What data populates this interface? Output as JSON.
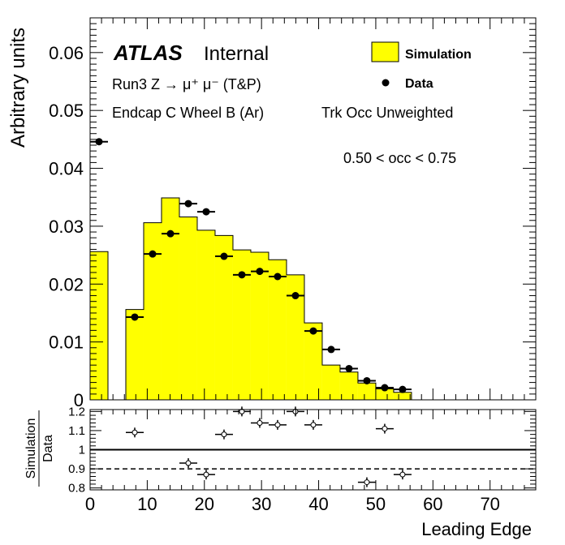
{
  "chart_data": [
    {
      "type": "bar",
      "panel": "main",
      "ylabel": "Arbitrary units",
      "xlim": [
        0,
        78
      ],
      "ylim": [
        0,
        0.066
      ],
      "y_ticks": [
        0,
        0.01,
        0.02,
        0.03,
        0.04,
        0.05,
        0.06
      ],
      "y_tick_labels": [
        "0",
        "0.01",
        "0.02",
        "0.03",
        "0.04",
        "0.05",
        "0.06"
      ],
      "annotations": {
        "atlas": "ATLAS",
        "internal": "Internal",
        "process": "Run3 Z → μ⁺ μ⁻ (T&P)",
        "region": "Endcap C Wheel B (Ar)",
        "weighting": "Trk Occ Unweighted",
        "occ_cut": "0.50 < occ < 0.75"
      },
      "legend": {
        "placement": "top-right",
        "entries": [
          {
            "label": "Simulation",
            "style": "fill",
            "color": "#ffff00"
          },
          {
            "label": "Data",
            "style": "marker",
            "color": "#000000"
          }
        ]
      },
      "series": [
        {
          "name": "Simulation",
          "style": "filled-histogram",
          "color": "#ffff00",
          "bins": [
            {
              "lo": 0.0,
              "hi": 3.125,
              "value": 0.0256
            },
            {
              "lo": 3.125,
              "hi": 6.25,
              "value": 0.0
            },
            {
              "lo": 6.25,
              "hi": 9.375,
              "value": 0.0156
            },
            {
              "lo": 9.375,
              "hi": 12.5,
              "value": 0.0306
            },
            {
              "lo": 12.5,
              "hi": 15.625,
              "value": 0.0349
            },
            {
              "lo": 15.625,
              "hi": 18.75,
              "value": 0.0316
            },
            {
              "lo": 18.75,
              "hi": 21.875,
              "value": 0.0293
            },
            {
              "lo": 21.875,
              "hi": 25.0,
              "value": 0.0284
            },
            {
              "lo": 25.0,
              "hi": 28.125,
              "value": 0.0259
            },
            {
              "lo": 28.125,
              "hi": 31.25,
              "value": 0.0255
            },
            {
              "lo": 31.25,
              "hi": 34.375,
              "value": 0.0242
            },
            {
              "lo": 34.375,
              "hi": 37.5,
              "value": 0.0216
            },
            {
              "lo": 37.5,
              "hi": 40.625,
              "value": 0.0133
            },
            {
              "lo": 40.625,
              "hi": 43.75,
              "value": 0.006
            },
            {
              "lo": 43.75,
              "hi": 46.875,
              "value": 0.0048
            },
            {
              "lo": 46.875,
              "hi": 50.0,
              "value": 0.0029
            },
            {
              "lo": 50.0,
              "hi": 53.125,
              "value": 0.0019
            },
            {
              "lo": 53.125,
              "hi": 56.25,
              "value": 0.0013
            }
          ]
        },
        {
          "name": "Data",
          "style": "markers",
          "color": "#000000",
          "points": [
            {
              "x": 1.5625,
              "y": 0.0446
            },
            {
              "x": 7.8125,
              "y": 0.0143
            },
            {
              "x": 10.9375,
              "y": 0.0252
            },
            {
              "x": 14.0625,
              "y": 0.0287
            },
            {
              "x": 17.1875,
              "y": 0.0339
            },
            {
              "x": 20.3125,
              "y": 0.0325
            },
            {
              "x": 23.4375,
              "y": 0.0248
            },
            {
              "x": 26.5625,
              "y": 0.0216
            },
            {
              "x": 29.6875,
              "y": 0.0222
            },
            {
              "x": 32.8125,
              "y": 0.0213
            },
            {
              "x": 35.9375,
              "y": 0.018
            },
            {
              "x": 39.0625,
              "y": 0.0119
            },
            {
              "x": 42.1875,
              "y": 0.0087
            },
            {
              "x": 45.3125,
              "y": 0.0054
            },
            {
              "x": 48.4375,
              "y": 0.0033
            },
            {
              "x": 51.5625,
              "y": 0.0021
            },
            {
              "x": 54.6875,
              "y": 0.0018
            }
          ]
        }
      ]
    },
    {
      "type": "scatter",
      "panel": "ratio",
      "xlabel": "Leading Edge",
      "ylabel_num": "Simulation",
      "ylabel_den": "Data",
      "xlim": [
        0,
        78
      ],
      "ylim": [
        0.79,
        1.21
      ],
      "x_ticks": [
        0,
        10,
        20,
        30,
        40,
        50,
        60,
        70
      ],
      "x_tick_labels": [
        "0",
        "10",
        "20",
        "30",
        "40",
        "50",
        "60",
        "70"
      ],
      "y_ticks": [
        0.8,
        0.9,
        1.0,
        1.1,
        1.2
      ],
      "y_tick_labels": [
        "0.8",
        "0.9",
        "1",
        "1.1",
        "1.2"
      ],
      "reference_lines": [
        {
          "y": 1.0,
          "style": "solid"
        },
        {
          "y": 0.9,
          "style": "dashed"
        }
      ],
      "series": [
        {
          "name": "Simulation / Data",
          "points": [
            {
              "x": 7.8125,
              "y": 1.09
            },
            {
              "x": 17.1875,
              "y": 0.93
            },
            {
              "x": 20.3125,
              "y": 0.87
            },
            {
              "x": 23.4375,
              "y": 1.08
            },
            {
              "x": 26.5625,
              "y": 1.2
            },
            {
              "x": 29.6875,
              "y": 1.14
            },
            {
              "x": 32.8125,
              "y": 1.13
            },
            {
              "x": 35.9375,
              "y": 1.2
            },
            {
              "x": 39.0625,
              "y": 1.13
            },
            {
              "x": 48.4375,
              "y": 0.83
            },
            {
              "x": 51.5625,
              "y": 1.11
            },
            {
              "x": 54.6875,
              "y": 0.87
            }
          ]
        }
      ]
    }
  ]
}
